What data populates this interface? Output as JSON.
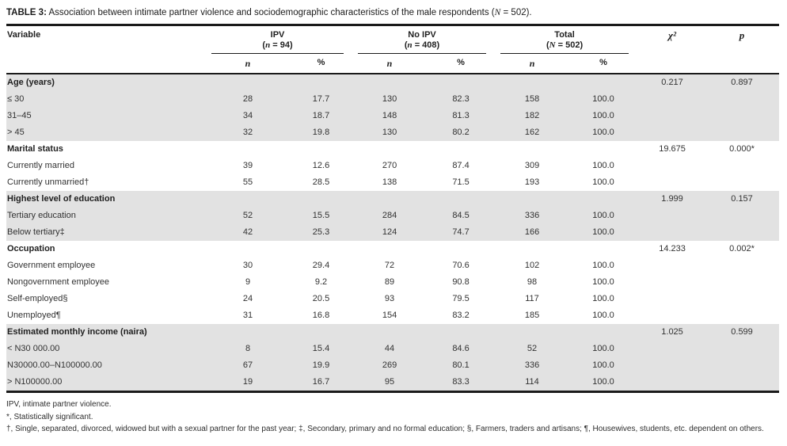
{
  "title": {
    "tag": "TABLE 3:",
    "text": " Association between intimate partner violence and sociodemographic characteristics of the male respondents (",
    "n_var": "N",
    "tail": " = 502)."
  },
  "table": {
    "header": {
      "variable": "Variable",
      "groups": [
        {
          "name": "IPV",
          "sub_open": "(",
          "sub_var": "n",
          "sub_rest": " = 94)"
        },
        {
          "name": "No IPV",
          "sub_open": "(",
          "sub_var": "n",
          "sub_rest": " = 408)"
        },
        {
          "name": "Total",
          "sub_open": "(",
          "sub_var": "N",
          "sub_rest": " = 502)"
        }
      ],
      "sub_n": "n",
      "sub_pct": "%",
      "chi": "χ²",
      "p": "p"
    },
    "sections": [
      {
        "label": "Age (years)",
        "chi2": "0.217",
        "p": "0.897",
        "shaded": true,
        "rows": [
          {
            "label": "≤ 30",
            "ipv_n": "28",
            "ipv_pct": "17.7",
            "noipv_n": "130",
            "noipv_pct": "82.3",
            "total_n": "158",
            "total_pct": "100.0"
          },
          {
            "label": "31–45",
            "ipv_n": "34",
            "ipv_pct": "18.7",
            "noipv_n": "148",
            "noipv_pct": "81.3",
            "total_n": "182",
            "total_pct": "100.0"
          },
          {
            "label": "> 45",
            "ipv_n": "32",
            "ipv_pct": "19.8",
            "noipv_n": "130",
            "noipv_pct": "80.2",
            "total_n": "162",
            "total_pct": "100.0"
          }
        ]
      },
      {
        "label": "Marital status",
        "chi2": "19.675",
        "p": "0.000*",
        "shaded": false,
        "rows": [
          {
            "label": "Currently married",
            "ipv_n": "39",
            "ipv_pct": "12.6",
            "noipv_n": "270",
            "noipv_pct": "87.4",
            "total_n": "309",
            "total_pct": "100.0"
          },
          {
            "label": "Currently unmarried†",
            "ipv_n": "55",
            "ipv_pct": "28.5",
            "noipv_n": "138",
            "noipv_pct": "71.5",
            "total_n": "193",
            "total_pct": "100.0"
          }
        ]
      },
      {
        "label": "Highest level of education",
        "chi2": "1.999",
        "p": "0.157",
        "shaded": true,
        "rows": [
          {
            "label": "Tertiary education",
            "ipv_n": "52",
            "ipv_pct": "15.5",
            "noipv_n": "284",
            "noipv_pct": "84.5",
            "total_n": "336",
            "total_pct": "100.0"
          },
          {
            "label": "Below tertiary‡",
            "ipv_n": "42",
            "ipv_pct": "25.3",
            "noipv_n": "124",
            "noipv_pct": "74.7",
            "total_n": "166",
            "total_pct": "100.0"
          }
        ]
      },
      {
        "label": "Occupation",
        "chi2": "14.233",
        "p": "0.002*",
        "shaded": false,
        "rows": [
          {
            "label": "Government employee",
            "ipv_n": "30",
            "ipv_pct": "29.4",
            "noipv_n": "72",
            "noipv_pct": "70.6",
            "total_n": "102",
            "total_pct": "100.0"
          },
          {
            "label": "Nongovernment employee",
            "ipv_n": "9",
            "ipv_pct": "9.2",
            "noipv_n": "89",
            "noipv_pct": "90.8",
            "total_n": "98",
            "total_pct": "100.0"
          },
          {
            "label": "Self-employed§",
            "ipv_n": "24",
            "ipv_pct": "20.5",
            "noipv_n": "93",
            "noipv_pct": "79.5",
            "total_n": "117",
            "total_pct": "100.0"
          },
          {
            "label": "Unemployed¶",
            "ipv_n": "31",
            "ipv_pct": "16.8",
            "noipv_n": "154",
            "noipv_pct": "83.2",
            "total_n": "185",
            "total_pct": "100.0"
          }
        ]
      },
      {
        "label": "Estimated monthly income (naira)",
        "chi2": "1.025",
        "p": "0.599",
        "shaded": true,
        "rows": [
          {
            "label": "< N30 000.00",
            "ipv_n": "8",
            "ipv_pct": "15.4",
            "noipv_n": "44",
            "noipv_pct": "84.6",
            "total_n": "52",
            "total_pct": "100.0"
          },
          {
            "label": "N30000.00–N100000.00",
            "ipv_n": "67",
            "ipv_pct": "19.9",
            "noipv_n": "269",
            "noipv_pct": "80.1",
            "total_n": "336",
            "total_pct": "100.0"
          },
          {
            "label": "> N100000.00",
            "ipv_n": "19",
            "ipv_pct": "16.7",
            "noipv_n": "95",
            "noipv_pct": "83.3",
            "total_n": "114",
            "total_pct": "100.0"
          }
        ]
      }
    ]
  },
  "footnotes": [
    "IPV, intimate partner violence.",
    "*, Statistically significant.",
    "†, Single, separated, divorced, widowed but with a sexual partner for the past year; ‡, Secondary, primary and no formal education; §, Farmers, traders and artisans; ¶, Housewives, students, etc. dependent on others."
  ],
  "colors": {
    "shaded_row": "#e2e2e2",
    "rule": "#1a1a1a",
    "text": "#323232"
  }
}
